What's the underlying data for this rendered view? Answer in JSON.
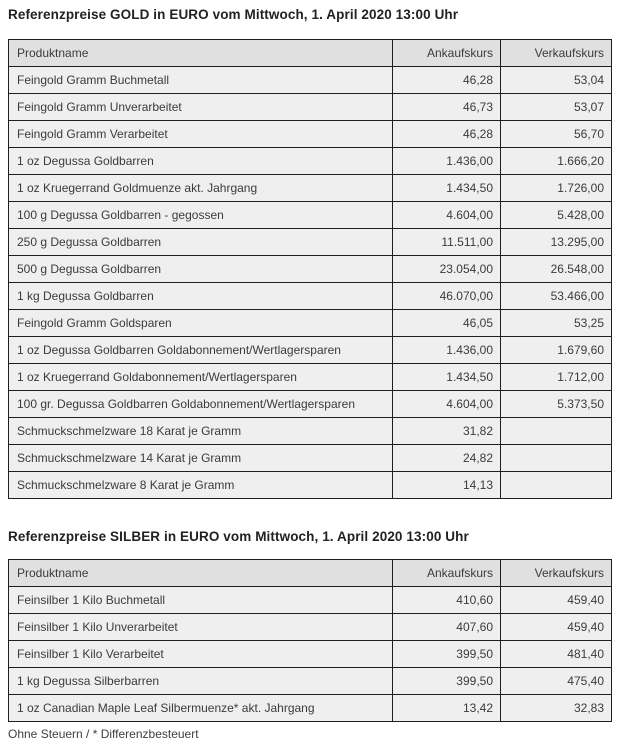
{
  "colors": {
    "page_bg": "#ffffff",
    "header_bg": "#e0e0e0",
    "row_bg": "#efefef",
    "border": "#1f1f1f",
    "title_text": "#222226",
    "cell_text": "#3b3b3b",
    "footer_text": "#3f3f3f"
  },
  "sections": [
    {
      "id": "gold",
      "title": "Referenzpreise GOLD in EURO vom Mittwoch, 1. April 2020 13:00 Uhr",
      "columns": [
        "Produktname",
        "Ankaufskurs",
        "Verkaufskurs"
      ],
      "rows": [
        {
          "produktname": "Feingold Gramm Buchmetall",
          "ankaufskurs": "46,28",
          "verkaufskurs": "53,04"
        },
        {
          "produktname": "Feingold Gramm Unverarbeitet",
          "ankaufskurs": "46,73",
          "verkaufskurs": "53,07"
        },
        {
          "produktname": "Feingold Gramm Verarbeitet",
          "ankaufskurs": "46,28",
          "verkaufskurs": "56,70"
        },
        {
          "produktname": "1 oz Degussa Goldbarren",
          "ankaufskurs": "1.436,00",
          "verkaufskurs": "1.666,20"
        },
        {
          "produktname": "1 oz Kruegerrand Goldmuenze akt. Jahrgang",
          "ankaufskurs": "1.434,50",
          "verkaufskurs": "1.726,00"
        },
        {
          "produktname": "100 g Degussa Goldbarren - gegossen",
          "ankaufskurs": "4.604,00",
          "verkaufskurs": "5.428,00"
        },
        {
          "produktname": "250 g Degussa Goldbarren",
          "ankaufskurs": "11.511,00",
          "verkaufskurs": "13.295,00"
        },
        {
          "produktname": "500 g Degussa Goldbarren",
          "ankaufskurs": "23.054,00",
          "verkaufskurs": "26.548,00"
        },
        {
          "produktname": "1 kg Degussa Goldbarren",
          "ankaufskurs": "46.070,00",
          "verkaufskurs": "53.466,00"
        },
        {
          "produktname": "Feingold Gramm Goldsparen",
          "ankaufskurs": "46,05",
          "verkaufskurs": "53,25"
        },
        {
          "produktname": "1 oz Degussa Goldbarren Goldabonnement/Wertlagersparen",
          "ankaufskurs": "1.436,00",
          "verkaufskurs": "1.679,60"
        },
        {
          "produktname": "1 oz Kruegerrand Goldabonnement/Wertlagersparen",
          "ankaufskurs": "1.434,50",
          "verkaufskurs": "1.712,00"
        },
        {
          "produktname": "100 gr. Degussa Goldbarren Goldabonnement/Wertlagersparen",
          "ankaufskurs": "4.604,00",
          "verkaufskurs": "5.373,50"
        },
        {
          "produktname": "Schmuckschmelzware 18 Karat je Gramm",
          "ankaufskurs": "31,82",
          "verkaufskurs": ""
        },
        {
          "produktname": "Schmuckschmelzware 14 Karat je Gramm",
          "ankaufskurs": "24,82",
          "verkaufskurs": ""
        },
        {
          "produktname": "Schmuckschmelzware 8 Karat je Gramm",
          "ankaufskurs": "14,13",
          "verkaufskurs": ""
        }
      ]
    },
    {
      "id": "silber",
      "title": "Referenzpreise SILBER in EURO vom Mittwoch, 1. April 2020 13:00 Uhr",
      "columns": [
        "Produktname",
        "Ankaufskurs",
        "Verkaufskurs"
      ],
      "rows": [
        {
          "produktname": "Feinsilber 1 Kilo Buchmetall",
          "ankaufskurs": "410,60",
          "verkaufskurs": "459,40"
        },
        {
          "produktname": "Feinsilber 1 Kilo Unverarbeitet",
          "ankaufskurs": "407,60",
          "verkaufskurs": "459,40"
        },
        {
          "produktname": "Feinsilber 1 Kilo Verarbeitet",
          "ankaufskurs": "399,50",
          "verkaufskurs": "481,40"
        },
        {
          "produktname": "1 kg Degussa Silberbarren",
          "ankaufskurs": "399,50",
          "verkaufskurs": "475,40"
        },
        {
          "produktname": "1 oz Canadian Maple Leaf Silbermuenze* akt. Jahrgang",
          "ankaufskurs": "13,42",
          "verkaufskurs": "32,83"
        }
      ]
    }
  ],
  "footer": {
    "note": "Ohne Steuern / * Differenzbesteuert"
  }
}
